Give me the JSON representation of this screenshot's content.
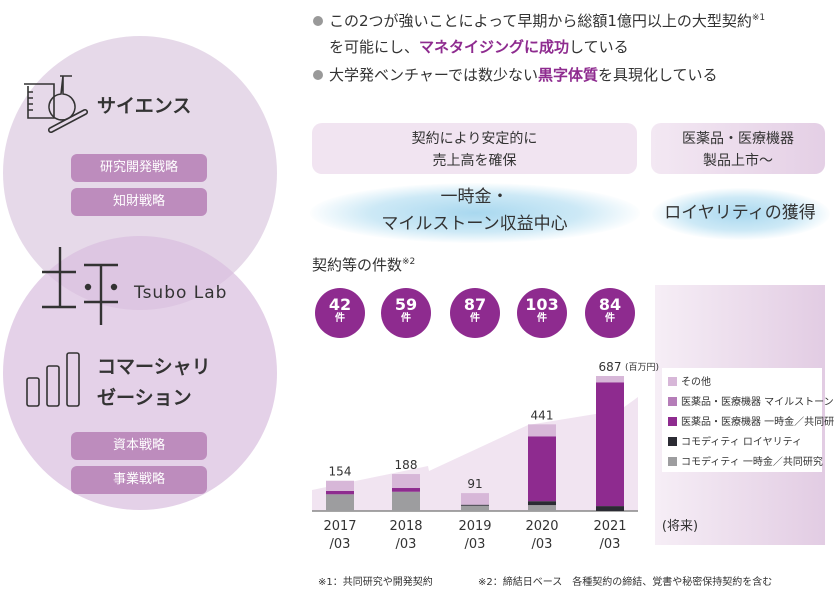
{
  "left": {
    "science": {
      "title": "サイエンス",
      "tags": [
        "研究開発戦略",
        "知財戦略"
      ]
    },
    "logo": {
      "text": "Tsubo Lab"
    },
    "commercial": {
      "title_line1": "コマーシャリ",
      "title_line2": "ゼーション",
      "tags": [
        "資本戦略",
        "事業戦略"
      ]
    }
  },
  "bullets": [
    {
      "pre": "この2つが強いことによって早期から総額1億円以上の大型契約",
      "sup": "※1",
      "line2_pre": "を可能にし、",
      "highlight": "マネタイジングに成功",
      "post": "している"
    },
    {
      "pre": "大学発ベンチャーでは数少ない",
      "highlight": "黒字体質",
      "post": "を具現化している"
    }
  ],
  "phases": [
    {
      "line1": "契約により安定的に",
      "line2": "売上高を確保",
      "sub_line1": "一時金・",
      "sub_line2": "マイルストーン収益中心"
    },
    {
      "line1": "医薬品・医療機器",
      "line2": "製品上市〜",
      "sub_line1": "ロイヤリティの獲得"
    }
  ],
  "counts": {
    "title": "契約等の件数",
    "sup": "※2",
    "unit": "件",
    "values": [
      "42",
      "59",
      "87",
      "103",
      "84"
    ]
  },
  "chart_data": {
    "type": "bar",
    "stacked": true,
    "categories": [
      "2017/03",
      "2018/03",
      "2019/03",
      "2020/03",
      "2021/03"
    ],
    "category_lines": [
      [
        "2017",
        "/03"
      ],
      [
        "2018",
        "/03"
      ],
      [
        "2019",
        "/03"
      ],
      [
        "2020",
        "/03"
      ],
      [
        "2021",
        "/03"
      ]
    ],
    "future_label": "(将来)",
    "totals": [
      "154",
      "188",
      "91",
      "441",
      "687"
    ],
    "unit": "(百万円)",
    "legend_position": "right",
    "series": [
      {
        "name": "コモディティ 一時金／共同研究",
        "color": "#9d9d9f",
        "values": [
          85,
          98,
          27,
          30,
          0
        ]
      },
      {
        "name": "コモディティ ロイヤリティ",
        "color": "#2b2b33",
        "values": [
          0,
          0,
          5,
          20,
          25
        ]
      },
      {
        "name": "医薬品・医療機器 一時金／共同研究",
        "color": "#8e2b8f",
        "values": [
          17,
          19,
          0,
          330,
          630
        ]
      },
      {
        "name": "医薬品・医療機器 マイルストーン",
        "color": "#b57db8",
        "values": [
          0,
          0,
          0,
          0,
          0
        ]
      },
      {
        "name": "その他",
        "color": "#d7b7d8",
        "values": [
          52,
          71,
          59,
          61,
          32
        ]
      }
    ],
    "ylim": [
      0,
      700
    ]
  },
  "footnotes": [
    "※1：共同研究や開発契約",
    "※2：締結日ベース　各種契約の締結、覚書や秘密保持契約を含む"
  ]
}
